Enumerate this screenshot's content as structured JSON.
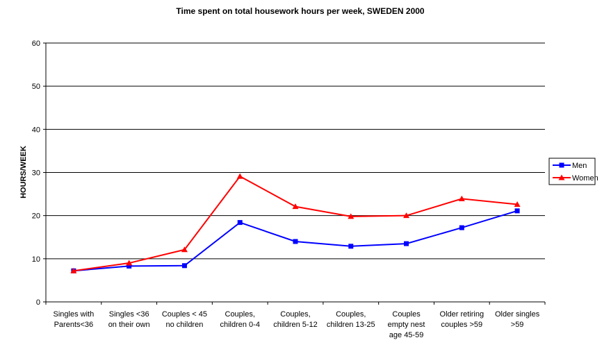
{
  "chart_data": {
    "type": "line",
    "title": "Time spent on total housework  hours per week, SWEDEN 2000",
    "xlabel": "",
    "ylabel": "HOURS/WEEK",
    "ylim": [
      0,
      60
    ],
    "yticks": [
      0,
      10,
      20,
      30,
      40,
      50,
      60
    ],
    "grid": true,
    "legend_position": "right",
    "categories": [
      [
        "Singles with",
        "Parents<36"
      ],
      [
        "Singles  <36",
        "on their own"
      ],
      [
        "Couples < 45",
        "no children"
      ],
      [
        "Couples,",
        "children 0-4"
      ],
      [
        "Couples,",
        "children 5-12"
      ],
      [
        "Couples,",
        "children 13-25"
      ],
      [
        "Couples",
        "empty nest",
        "age 45-59"
      ],
      [
        "Older retiring",
        "couples >59"
      ],
      [
        "Older singles",
        ">59"
      ]
    ],
    "series": [
      {
        "name": "Men",
        "color": "#0000ff",
        "marker": "square",
        "values": [
          7.2,
          8.3,
          8.4,
          18.4,
          14.0,
          12.9,
          13.5,
          17.2,
          21.1
        ]
      },
      {
        "name": "Women",
        "color": "#ff0000",
        "marker": "triangle",
        "values": [
          7.2,
          9.0,
          12.1,
          29.1,
          22.1,
          19.8,
          20.0,
          23.9,
          22.6
        ]
      }
    ]
  }
}
